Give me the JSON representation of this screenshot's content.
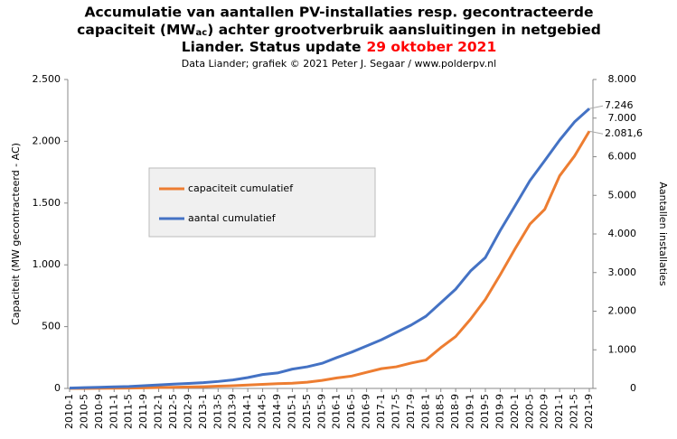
{
  "chart_data": {
    "type": "line",
    "title": {
      "line1": "Accumulatie van aantallen PV-installaties resp. gecontracteerde",
      "line2": [
        "capaciteit (MW",
        "ac",
        ") achter grootverbruik aansluitingen in netgebied"
      ],
      "line3": [
        "Liander. Status update",
        "29 oktober 2021"
      ]
    },
    "title_highlight_color": "#ff0000",
    "subtitle": "Data Liander; grafiek © 2021 Peter J. Segaar / www.polderpv.nl",
    "ylabel": "Capaciteit (MW gecontracteerd - AC)",
    "y2label": "Aantallen installaties",
    "categories": [
      "2010-1",
      "2010-5",
      "2010-9",
      "2011-1",
      "2011-5",
      "2011-9",
      "2012-1",
      "2012-5",
      "2012-9",
      "2013-1",
      "2013-5",
      "2013-9",
      "2014-1",
      "2014-5",
      "2014-9",
      "2015-1",
      "2015-5",
      "2015-9",
      "2016-1",
      "2016-5",
      "2016-9",
      "2017-1",
      "2017-5",
      "2017-9",
      "2018-1",
      "2018-5",
      "2018-9",
      "2019-1",
      "2019-5",
      "2019-9",
      "2020-1",
      "2020-5",
      "2020-9",
      "2021-1",
      "2021-5",
      "2021-9"
    ],
    "series": [
      {
        "name": "capaciteit cumulatief",
        "color": "#ed7d31",
        "values": [
          0,
          0,
          1,
          2,
          3,
          5,
          7,
          9,
          12,
          14,
          18,
          22,
          27,
          33,
          38,
          42,
          50,
          65,
          85,
          100,
          130,
          160,
          175,
          205,
          230,
          330,
          420,
          560,
          720,
          920,
          1130,
          1330,
          1450,
          1720,
          1880,
          2081.6
        ],
        "value_labels": [
          null,
          null,
          null,
          null,
          null,
          null,
          null,
          null,
          null,
          null,
          null,
          null,
          null,
          null,
          null,
          null,
          null,
          null,
          null,
          null,
          null,
          null,
          null,
          null,
          null,
          null,
          null,
          null,
          null,
          null,
          null,
          null,
          null,
          null,
          null,
          "2.081,6"
        ]
      },
      {
        "name": "aantal cumulatief",
        "color": "#4472c4",
        "axis": "y2",
        "values": [
          10,
          20,
          30,
          40,
          50,
          70,
          90,
          110,
          130,
          150,
          180,
          220,
          280,
          360,
          400,
          500,
          560,
          650,
          800,
          940,
          1100,
          1260,
          1450,
          1640,
          1870,
          2220,
          2570,
          3040,
          3390,
          4090,
          4730,
          5380,
          5900,
          6430,
          6900,
          7246
        ],
        "value_labels": [
          null,
          null,
          null,
          null,
          null,
          null,
          null,
          null,
          null,
          null,
          null,
          null,
          null,
          null,
          null,
          null,
          null,
          null,
          null,
          null,
          null,
          null,
          null,
          null,
          null,
          null,
          null,
          null,
          null,
          null,
          null,
          null,
          null,
          null,
          null,
          "7.246"
        ]
      }
    ],
    "ylim": [
      0,
      2500
    ],
    "yticks": [
      0,
      {
        "value": 500,
        "label": "500"
      },
      {
        "value": 1000,
        "label": "1.000"
      },
      {
        "value": 1500,
        "label": "1.500"
      },
      {
        "value": 2000,
        "label": "2.000"
      },
      {
        "value": 2500,
        "label": "2.500"
      }
    ],
    "y2lim": [
      0,
      8000
    ],
    "y2ticks": [
      0,
      {
        "value": 1000,
        "label": "1.000"
      },
      {
        "value": 2000,
        "label": "2.000"
      },
      {
        "value": 3000,
        "label": "3.000"
      },
      {
        "value": 4000,
        "label": "4.000"
      },
      {
        "value": 5000,
        "label": "5.000"
      },
      {
        "value": 6000,
        "label": "6.000"
      },
      {
        "value": 7000,
        "label": "7.000"
      },
      {
        "value": 8000,
        "label": "8.000"
      }
    ],
    "grid": false
  }
}
